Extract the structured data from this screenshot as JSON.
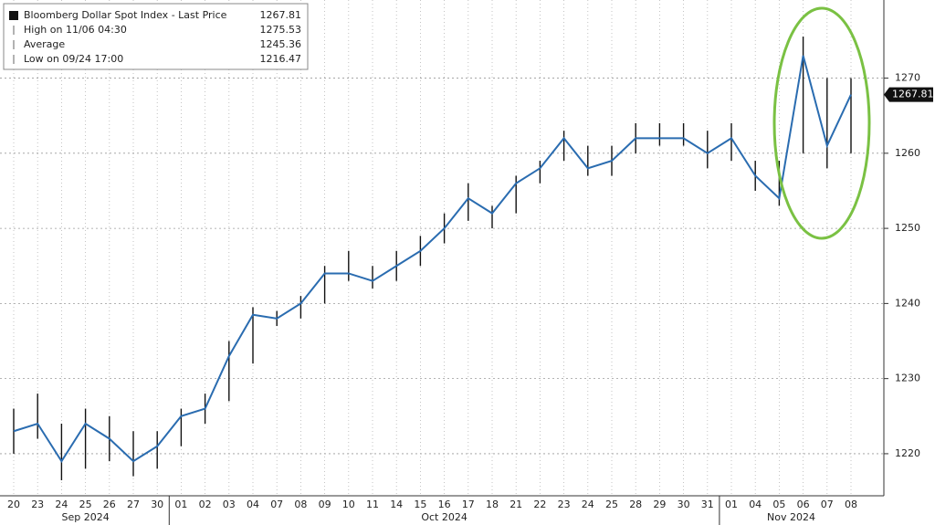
{
  "chart_data": {
    "type": "candlestick",
    "categories": [
      "20",
      "23",
      "24",
      "25",
      "26",
      "27",
      "30",
      "01",
      "02",
      "03",
      "04",
      "07",
      "08",
      "09",
      "10",
      "11",
      "14",
      "15",
      "16",
      "17",
      "18",
      "21",
      "22",
      "23",
      "24",
      "25",
      "28",
      "29",
      "30",
      "31",
      "01",
      "04",
      "05",
      "06",
      "07",
      "08"
    ],
    "months": [
      "Sep 2024",
      "Oct 2024",
      "Nov 2024"
    ],
    "series": [
      {
        "name": "Bloomberg Dollar Spot Index",
        "color": "#2a6cb0",
        "values": [
          1223,
          1224,
          1219,
          1224,
          1222,
          1219,
          1221,
          1225,
          1226,
          1233,
          1238.5,
          1238,
          1240,
          1244,
          1244,
          1243,
          1245,
          1247,
          1250,
          1254,
          1252,
          1256,
          1258,
          1262,
          1258,
          1259,
          1262,
          1262,
          1262,
          1260,
          1262,
          1257,
          1254,
          1273,
          1261,
          1267.81
        ],
        "high": [
          1226,
          1228,
          1224,
          1226,
          1225,
          1223,
          1223,
          1226,
          1228,
          1235,
          1239.5,
          1239,
          1241,
          1245,
          1247,
          1245,
          1247,
          1249,
          1252,
          1256,
          1253,
          1257,
          1259,
          1263,
          1261,
          1261,
          1264,
          1264,
          1264,
          1263,
          1264,
          1259,
          1259,
          1275.53,
          1270,
          1270
        ],
        "low": [
          1220,
          1222,
          1216.47,
          1218,
          1219,
          1217,
          1218,
          1221,
          1224,
          1227,
          1232,
          1237,
          1238,
          1240,
          1243,
          1242,
          1243,
          1245,
          1248,
          1251,
          1250,
          1252,
          1256,
          1259,
          1257,
          1257,
          1260,
          1261,
          1261,
          1258,
          1259,
          1255,
          1253,
          1260,
          1258,
          1260
        ]
      }
    ],
    "legend": [
      {
        "label": "Bloomberg Dollar Spot Index - Last Price",
        "value": 1267.81
      },
      {
        "label": "High on 11/06 04:30",
        "value": 1275.53
      },
      {
        "label": "Average",
        "value": 1245.36
      },
      {
        "label": "Low on 09/24 17:00",
        "value": 1216.47
      }
    ],
    "last_price": 1267.81,
    "ylim": [
      1214.4,
      1280.4
    ],
    "yticks": [
      1220,
      1230,
      1240,
      1250,
      1260,
      1270
    ],
    "grid": true
  }
}
